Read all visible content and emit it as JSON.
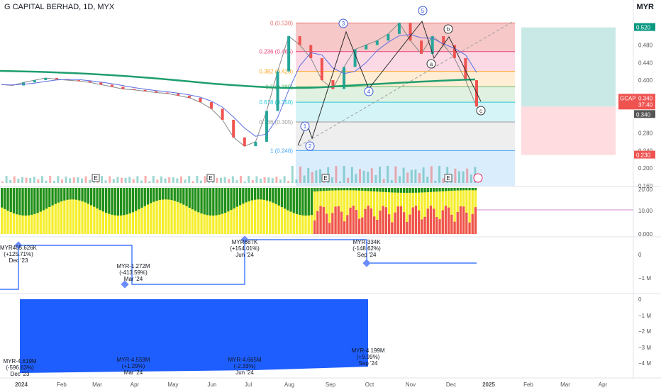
{
  "header": {
    "title": "G CAPITAL BERHAD, 1D, MYX",
    "currency": "MYR"
  },
  "colors": {
    "up": "#26a69a",
    "down": "#ef5350",
    "ma_green": "#1e9e6e",
    "ma_blue": "#5b6ee1",
    "ma_purple": "#8e6bd6",
    "wave": "#2b2b2b",
    "fib_zero": "#ef9a9a",
    "fib_236": "#f8bbd0",
    "fib_382": "#ffe0b2",
    "fib_5": "#c8e6c9",
    "fib_618": "#b2ebf2",
    "fib_786": "#e0e0e0",
    "fib_1": "#bbdefb",
    "target_green": "#b2dfdb",
    "stop_red": "#ffcdd2",
    "osc_green": "#1e8f1e",
    "osc_yellow": "#f5ee2c",
    "osc_red": "#ef5350",
    "cashflow_blue": "#1e5eff",
    "price_label": "#ef5350",
    "target_label": "#089981"
  },
  "chart_data": [
    {
      "type": "line",
      "name": "price",
      "x_axis_labels": [
        "2024",
        "Feb",
        "Mar",
        "Apr",
        "May",
        "Jun",
        "Jul",
        "Aug",
        "Sep",
        "Oct",
        "Nov",
        "Dec",
        "2025",
        "Feb",
        "Mar",
        "Apr"
      ],
      "y_tick_labels": [
        "0.520",
        "0.480",
        "0.440",
        "0.400",
        "0.360",
        "0.340",
        "0.320",
        "0.280",
        "0.240",
        "0.200",
        "0.160"
      ],
      "ylim": [
        0.16,
        0.55
      ],
      "series": [
        {
          "values": [
            0.39,
            0.388,
            0.395,
            0.4,
            0.405,
            0.402,
            0.4,
            0.398,
            0.395,
            0.39,
            0.385,
            0.38,
            0.378,
            0.375,
            0.372,
            0.37,
            0.365,
            0.36,
            0.35,
            0.335,
            0.31,
            0.27,
            0.25,
            0.26,
            0.33,
            0.42,
            0.5,
            0.48,
            0.45,
            0.4,
            0.38,
            0.43,
            0.47,
            0.48,
            0.49,
            0.505,
            0.53,
            0.49,
            0.46,
            0.5,
            0.48,
            0.45,
            0.4,
            0.34
          ]
        }
      ],
      "fib_levels": [
        {
          "label": "0 (0.530)",
          "value": 0.53
        },
        {
          "label": "0.236 (0.465)",
          "value": 0.465
        },
        {
          "label": "0.382 (0.420)",
          "value": 0.42
        },
        {
          "label": "0.5 (0.385)",
          "value": 0.385
        },
        {
          "label": "0.618 (0.350)",
          "value": 0.35
        },
        {
          "label": "0.786 (0.305)",
          "value": 0.305
        },
        {
          "label": "1 (0.240)",
          "value": 0.24
        }
      ],
      "wave_labels": [
        "1",
        "2",
        "3",
        "4",
        "5",
        "a",
        "b",
        "c"
      ],
      "earnings_markers": [
        "E",
        "E",
        "E",
        "E"
      ],
      "price_labels": {
        "target": "0.520",
        "ticker": "GCAP",
        "current": "0.340",
        "time": "37:40",
        "current2": "0.340",
        "stop": "0.230"
      }
    },
    {
      "type": "bar",
      "name": "oscillator",
      "y_tick_labels": [
        "20.00",
        "10.00",
        "0.000"
      ],
      "ylim": [
        0,
        20
      ]
    },
    {
      "type": "line",
      "name": "net change",
      "y_tick_labels": [
        "0",
        "−1 M"
      ],
      "annotations": [
        {
          "value": "MYR405.626K",
          "change": "(+125.71%)",
          "period": "Dec '23"
        },
        {
          "value": "MYR-1.272M",
          "change": "(-413.59%)",
          "period": "Mar '24"
        },
        {
          "value": "MYR687K",
          "change": "(+154.01%)",
          "period": "Jun '24"
        },
        {
          "value": "MYR-334K",
          "change": "(-148.62%)",
          "period": "Sep '24"
        }
      ]
    },
    {
      "type": "area",
      "name": "cash flow",
      "y_tick_labels": [
        "0",
        "−1 M",
        "−2 M",
        "−3 M",
        "−4 M"
      ],
      "annotations": [
        {
          "value": "MYR-4.619M",
          "change": "(-596.63%)",
          "period": "Dec '23"
        },
        {
          "value": "MYR-4.559M",
          "change": "(+1.29%)",
          "period": "Mar '24"
        },
        {
          "value": "MYR-4.665M",
          "change": "(-2.33%)",
          "period": "Jun '24"
        },
        {
          "value": "MYR-4.199M",
          "change": "(+9.99%)",
          "period": "Sep '24"
        }
      ]
    }
  ]
}
